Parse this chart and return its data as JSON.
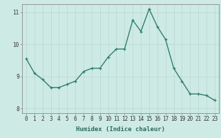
{
  "x": [
    0,
    1,
    2,
    3,
    4,
    5,
    6,
    7,
    8,
    9,
    10,
    11,
    12,
    13,
    14,
    15,
    16,
    17,
    18,
    19,
    20,
    21,
    22,
    23
  ],
  "y": [
    9.55,
    9.1,
    8.9,
    8.65,
    8.65,
    8.75,
    8.85,
    9.15,
    9.25,
    9.25,
    9.6,
    9.85,
    9.85,
    10.75,
    10.4,
    11.1,
    10.55,
    10.15,
    9.25,
    8.85,
    8.45,
    8.45,
    8.4,
    8.25
  ],
  "line_color": "#2d7d6e",
  "marker": "+",
  "marker_color": "#2d7d6e",
  "marker_size": 3,
  "line_width": 1.0,
  "xlabel": "Humidex (Indice chaleur)",
  "xlim": [
    -0.5,
    23.5
  ],
  "ylim": [
    7.85,
    11.25
  ],
  "yticks": [
    8,
    9,
    10,
    11
  ],
  "xtick_labels": [
    "0",
    "1",
    "2",
    "3",
    "4",
    "5",
    "6",
    "7",
    "8",
    "9",
    "10",
    "11",
    "12",
    "13",
    "14",
    "15",
    "16",
    "17",
    "18",
    "19",
    "20",
    "21",
    "22",
    "23"
  ],
  "bg_color": "#ceeae4",
  "grid_color": "#b8d8d2",
  "tick_fontsize": 5.5,
  "label_fontsize": 6.5
}
